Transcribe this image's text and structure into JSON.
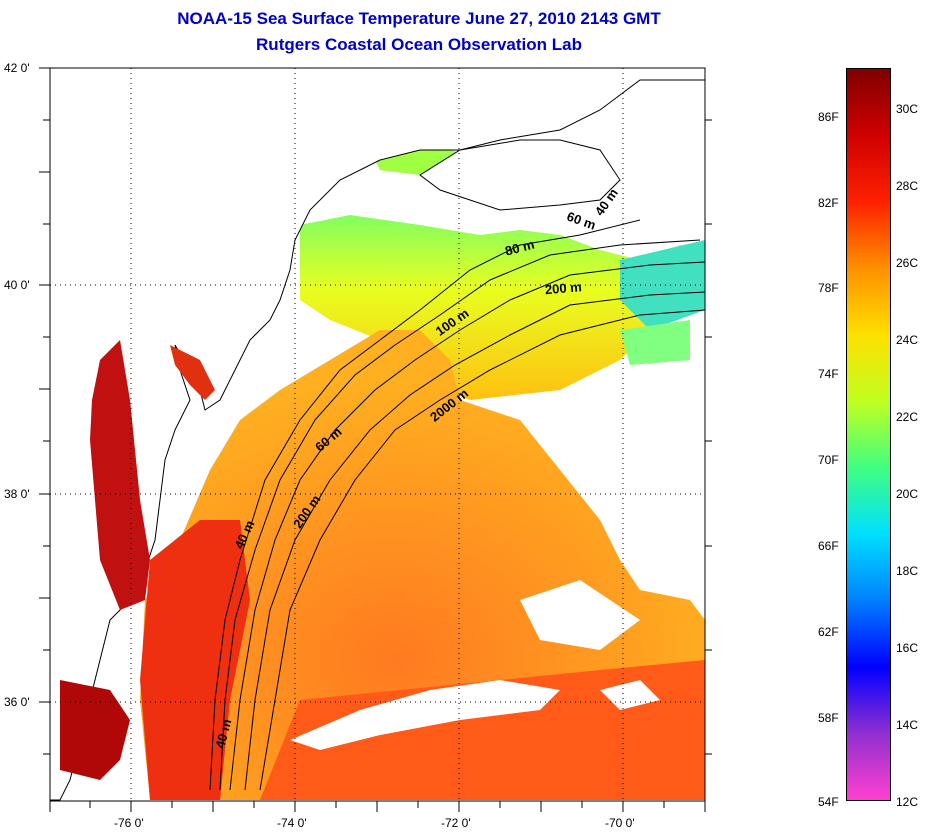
{
  "title": {
    "line1": "NOAA-15 Sea Surface Temperature June 27, 2010 2143 GMT",
    "line2": "Rutgers Coastal Ocean Observation Lab"
  },
  "map": {
    "lat_ticks": [
      {
        "label": "42 0'",
        "value": 42
      },
      {
        "label": "40 0'",
        "value": 40
      },
      {
        "label": "38 0'",
        "value": 38
      },
      {
        "label": "36 0'",
        "value": 36
      }
    ],
    "lon_ticks": [
      {
        "label": "-76 0'",
        "value": -76
      },
      {
        "label": "-74 0'",
        "value": -74
      },
      {
        "label": "-72 0'",
        "value": -72
      },
      {
        "label": "-70 0'",
        "value": -70
      }
    ],
    "contour_labels": [
      "40 m",
      "60 m",
      "80 m",
      "200 m",
      "100 m",
      "2000 m",
      "60 m",
      "40 m",
      "200 m",
      "40 m"
    ],
    "land_color": "#ffffff",
    "cloud_color": "#ffffff"
  },
  "colorbar": {
    "fahrenheit": [
      "86F",
      "82F",
      "78F",
      "74F",
      "70F",
      "66F",
      "62F",
      "58F",
      "54F"
    ],
    "celsius": [
      "30C",
      "28C",
      "26C",
      "24C",
      "22C",
      "20C",
      "18C",
      "16C",
      "14C",
      "12C"
    ],
    "colors": [
      "#ff40d0",
      "#9030d0",
      "#0000ff",
      "#0080ff",
      "#00e0ff",
      "#40ff80",
      "#c0ff20",
      "#ffe000",
      "#ff9000",
      "#ff2000",
      "#d00000",
      "#800000"
    ]
  }
}
